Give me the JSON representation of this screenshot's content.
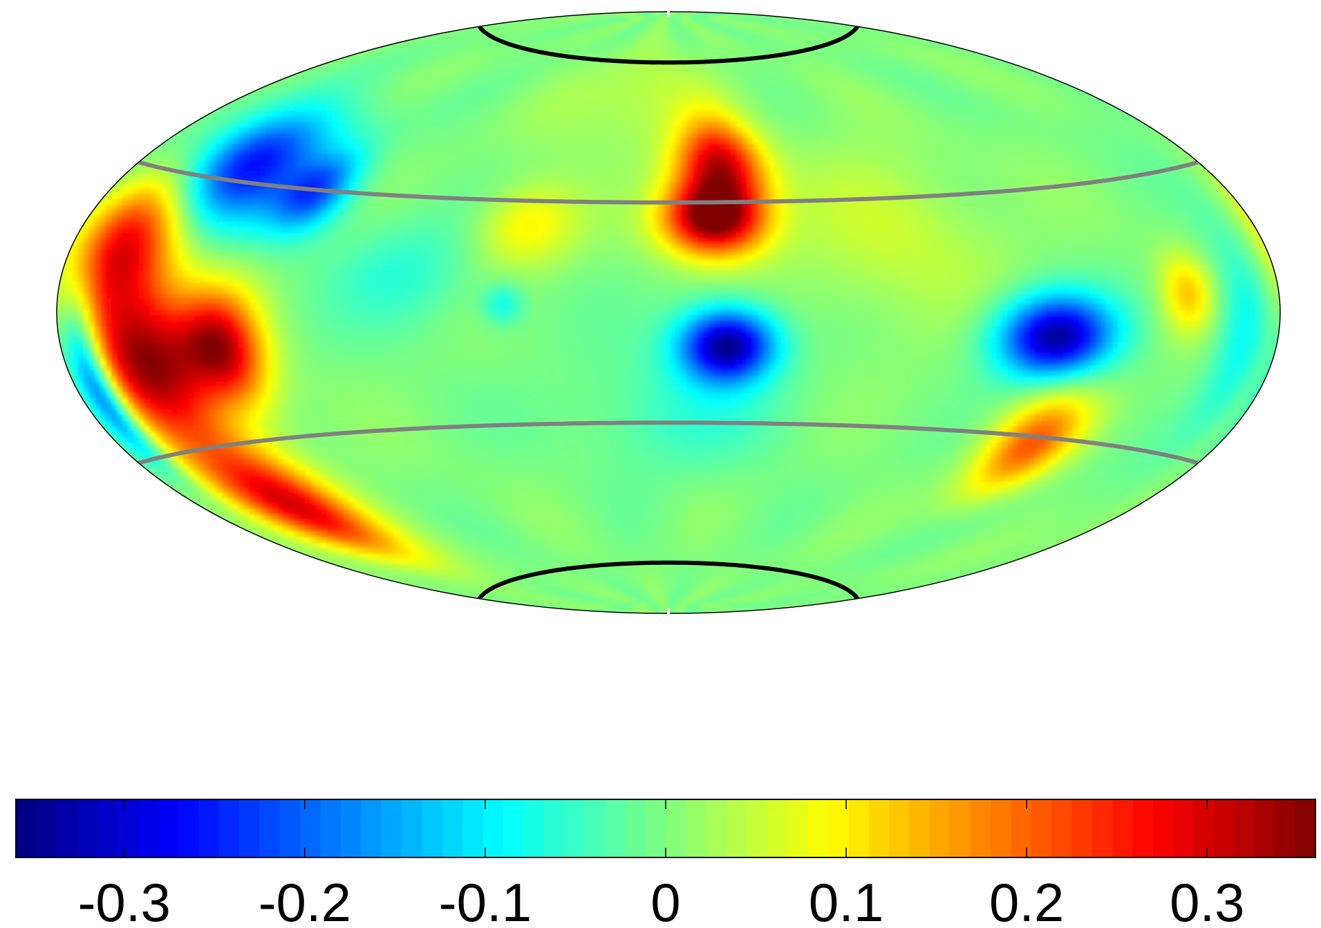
{
  "chart_data": {
    "type": "heatmap",
    "projection": "hammer-aitoff all-sky map",
    "colormap": "jet",
    "colorbar": {
      "orientation": "horizontal",
      "placement": "bottom",
      "range": [
        -0.36,
        0.36
      ],
      "ticks": [
        {
          "value": -0.3,
          "label": "-0.3"
        },
        {
          "value": -0.2,
          "label": "-0.2"
        },
        {
          "value": -0.1,
          "label": "-0.1"
        },
        {
          "value": 0,
          "label": "0"
        },
        {
          "value": 0.1,
          "label": "0.1"
        },
        {
          "value": 0.2,
          "label": "0.2"
        },
        {
          "value": 0.3,
          "label": "0.3"
        }
      ]
    },
    "boundary_lines": [
      {
        "kind": "latitude",
        "latitude_deg": 72,
        "color": "#000000"
      },
      {
        "kind": "latitude",
        "latitude_deg": 30,
        "color": "#808080"
      },
      {
        "kind": "latitude",
        "latitude_deg": -30,
        "color": "#808080"
      },
      {
        "kind": "latitude",
        "latitude_deg": -72,
        "color": "#000000"
      }
    ],
    "features": [
      {
        "lon_deg": 17,
        "lat_deg": 40,
        "value": 0.3,
        "spread_deg": [
          10,
          9
        ]
      },
      {
        "lon_deg": 13,
        "lat_deg": 25,
        "value": 0.36,
        "spread_deg": [
          10,
          7
        ]
      },
      {
        "lon_deg": 16,
        "lat_deg": -9,
        "value": -0.35,
        "spread_deg": [
          9,
          7
        ]
      },
      {
        "lon_deg": 107,
        "lat_deg": -6,
        "value": -0.34,
        "spread_deg": [
          12,
          7
        ]
      },
      {
        "lon_deg": 115,
        "lat_deg": -32,
        "value": 0.2,
        "spread_deg": [
          10,
          9
        ]
      },
      {
        "lon_deg": -160,
        "lat_deg": 14,
        "value": 0.3,
        "spread_deg": [
          13,
          12
        ]
      },
      {
        "lon_deg": -150,
        "lat_deg": -12,
        "value": 0.33,
        "spread_deg": [
          14,
          11
        ]
      },
      {
        "lon_deg": -145,
        "lat_deg": -45,
        "value": 0.3,
        "spread_deg": [
          15,
          11
        ]
      },
      {
        "lon_deg": -125,
        "lat_deg": -8,
        "value": 0.28,
        "spread_deg": [
          9,
          9
        ]
      },
      {
        "lon_deg": -140,
        "lat_deg": 33,
        "value": -0.28,
        "spread_deg": [
          18,
          10
        ]
      },
      {
        "lon_deg": -108,
        "lat_deg": 29,
        "value": -0.18,
        "spread_deg": [
          8,
          7
        ]
      },
      {
        "lon_deg": -172,
        "lat_deg": -15,
        "value": -0.25,
        "spread_deg": [
          5,
          12
        ]
      },
      {
        "lon_deg": -40,
        "lat_deg": 23,
        "value": 0.1,
        "spread_deg": [
          10,
          8
        ]
      },
      {
        "lon_deg": -44,
        "lat_deg": 2,
        "value": -0.08,
        "spread_deg": [
          4,
          4
        ]
      },
      {
        "lon_deg": -72,
        "lat_deg": 10,
        "value": -0.06,
        "spread_deg": [
          14,
          10
        ]
      },
      {
        "lon_deg": 4,
        "lat_deg": -28,
        "value": -0.05,
        "spread_deg": [
          22,
          12
        ]
      },
      {
        "lon_deg": -10,
        "lat_deg": 60,
        "value": 0.05,
        "spread_deg": [
          25,
          12
        ]
      },
      {
        "lon_deg": 148,
        "lat_deg": 4,
        "value": 0.12,
        "spread_deg": [
          6,
          6
        ]
      },
      {
        "lon_deg": 168,
        "lat_deg": -3,
        "value": -0.1,
        "spread_deg": [
          7,
          14
        ]
      },
      {
        "lon_deg": 65,
        "lat_deg": 20,
        "value": 0.05,
        "spread_deg": [
          22,
          18
        ]
      }
    ]
  }
}
